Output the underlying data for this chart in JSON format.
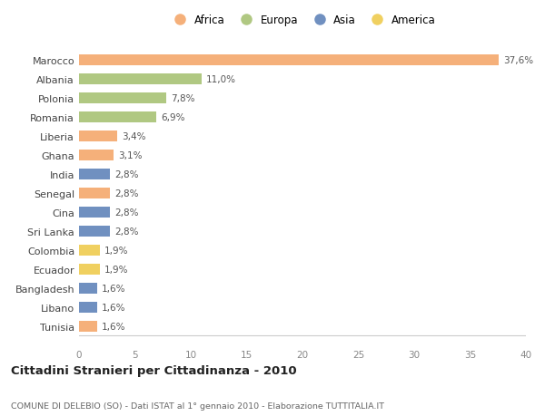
{
  "countries": [
    "Tunisia",
    "Libano",
    "Bangladesh",
    "Ecuador",
    "Colombia",
    "Sri Lanka",
    "Cina",
    "Senegal",
    "India",
    "Ghana",
    "Liberia",
    "Romania",
    "Polonia",
    "Albania",
    "Marocco"
  ],
  "values": [
    1.6,
    1.6,
    1.6,
    1.9,
    1.9,
    2.8,
    2.8,
    2.8,
    2.8,
    3.1,
    3.4,
    6.9,
    7.8,
    11.0,
    37.6
  ],
  "continents": [
    "Africa",
    "Asia",
    "Asia",
    "America",
    "America",
    "Asia",
    "Asia",
    "Africa",
    "Asia",
    "Africa",
    "Africa",
    "Europa",
    "Europa",
    "Europa",
    "Africa"
  ],
  "labels": [
    "1,6%",
    "1,6%",
    "1,6%",
    "1,9%",
    "1,9%",
    "2,8%",
    "2,8%",
    "2,8%",
    "2,8%",
    "3,1%",
    "3,4%",
    "6,9%",
    "7,8%",
    "11,0%",
    "37,6%"
  ],
  "continent_colors": {
    "Africa": "#F5B07A",
    "Europa": "#B0C882",
    "Asia": "#7090C0",
    "America": "#F0D060"
  },
  "legend_order": [
    "Africa",
    "Europa",
    "Asia",
    "America"
  ],
  "xlim": [
    0,
    40
  ],
  "xticks": [
    0,
    5,
    10,
    15,
    20,
    25,
    30,
    35,
    40
  ],
  "title": "Cittadini Stranieri per Cittadinanza - 2010",
  "subtitle": "COMUNE DI DELEBIO (SO) - Dati ISTAT al 1° gennaio 2010 - Elaborazione TUTTITALIA.IT",
  "background_color": "#ffffff",
  "bar_height": 0.55
}
